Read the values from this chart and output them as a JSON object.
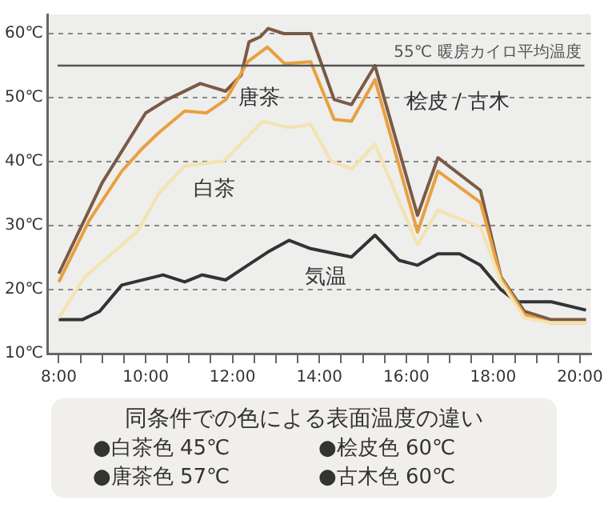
{
  "chart_data": {
    "type": "line",
    "xlim": [
      7.75,
      20.25
    ],
    "ylim": [
      10,
      63
    ],
    "xticks": [
      {
        "value": 8,
        "label": "8:00"
      },
      {
        "value": 8.5,
        "label": null
      },
      {
        "value": 9,
        "label": null
      },
      {
        "value": 9.5,
        "label": null
      },
      {
        "value": 10,
        "label": "10:00"
      },
      {
        "value": 10.5,
        "label": null
      },
      {
        "value": 11,
        "label": null
      },
      {
        "value": 11.5,
        "label": null
      },
      {
        "value": 12,
        "label": "12:00"
      },
      {
        "value": 12.5,
        "label": null
      },
      {
        "value": 13,
        "label": null
      },
      {
        "value": 13.5,
        "label": null
      },
      {
        "value": 14,
        "label": "14:00"
      },
      {
        "value": 14.5,
        "label": null
      },
      {
        "value": 15,
        "label": null
      },
      {
        "value": 15.5,
        "label": null
      },
      {
        "value": 16,
        "label": "16:00"
      },
      {
        "value": 16.5,
        "label": null
      },
      {
        "value": 17,
        "label": null
      },
      {
        "value": 17.5,
        "label": null
      },
      {
        "value": 18,
        "label": "18:00"
      },
      {
        "value": 18.5,
        "label": null
      },
      {
        "value": 19,
        "label": null
      },
      {
        "value": 19.5,
        "label": null
      },
      {
        "value": 20,
        "label": "20:00"
      }
    ],
    "yticks": [
      {
        "value": 10,
        "label": "10℃"
      },
      {
        "value": 20,
        "label": "20℃"
      },
      {
        "value": 30,
        "label": "30℃"
      },
      {
        "value": 40,
        "label": "40℃"
      },
      {
        "value": 50,
        "label": "50℃"
      },
      {
        "value": 60,
        "label": "60℃"
      }
    ],
    "grid": "y",
    "marker": "none",
    "line_style": "solid",
    "series": [
      {
        "name": "白茶",
        "color": "#f3e3b0",
        "x": [
          8,
          8.6,
          9.8,
          10.3,
          10.9,
          11.8,
          12.7,
          13.3,
          13.8,
          14.27,
          14.74,
          15.28,
          16.26,
          16.73,
          17.71,
          18.18,
          18.72,
          19.34,
          20.14
        ],
        "values": [
          15.6,
          22,
          29,
          35,
          39.3,
          40.1,
          46.3,
          45.3,
          45.8,
          40.1,
          38.8,
          42.7,
          27,
          32.4,
          29.8,
          21.2,
          15.6,
          14.8,
          14.8
        ]
      },
      {
        "name": "唐茶",
        "color": "#e8a040",
        "x": [
          8,
          8.7,
          9.45,
          9.9,
          10.3,
          10.9,
          11.4,
          11.85,
          12.35,
          12.8,
          13.2,
          13.8,
          14.34,
          14.74,
          15.28,
          16.26,
          16.73,
          17.71,
          18.18,
          18.72,
          19.34,
          20.14
        ],
        "values": [
          21.2,
          30.8,
          38.5,
          41.9,
          44.5,
          47.9,
          47.6,
          49.7,
          55.6,
          57.9,
          55.3,
          55.6,
          46.6,
          46.3,
          52.8,
          29,
          38.5,
          33.6,
          21.8,
          16.1,
          14.8,
          14.8
        ]
      },
      {
        "name": "桧皮 / 古木",
        "color": "#7a5a45",
        "x": [
          8,
          9,
          10,
          10.5,
          11.26,
          11.84,
          12.2,
          12.38,
          12.64,
          12.82,
          13.18,
          13.8,
          14.34,
          14.74,
          15.28,
          16.26,
          16.73,
          17.71,
          18.18,
          18.72,
          19.34,
          20.14
        ],
        "values": [
          22.5,
          36.7,
          47.6,
          49.7,
          52.2,
          51,
          53.5,
          58.7,
          59.5,
          60.8,
          60,
          60,
          49.7,
          48.9,
          55,
          31.6,
          40.6,
          35.5,
          22,
          16.6,
          15.3,
          15.3
        ]
      },
      {
        "name": "気温",
        "color": "#333333",
        "x": [
          8,
          8.54,
          8.94,
          9.45,
          10.4,
          10.9,
          11.3,
          11.84,
          12.35,
          12.82,
          13.3,
          13.8,
          14.74,
          15.28,
          15.83,
          16.26,
          16.73,
          17.23,
          17.71,
          18.18,
          18.54,
          19.34,
          20.14
        ],
        "values": [
          15.3,
          15.3,
          16.6,
          20.7,
          22.3,
          21.2,
          22.3,
          21.5,
          23.8,
          25.9,
          27.7,
          26.4,
          25.1,
          28.5,
          24.6,
          23.8,
          25.6,
          25.6,
          23.8,
          20,
          18.1,
          18.1,
          16.8
        ]
      }
    ],
    "ref_lines": [
      {
        "axis": "y",
        "value": 55,
        "label": "55℃ 暖房カイロ平均温度",
        "color": "#555555"
      }
    ],
    "annotations": [
      "同条件での色による表面温度の違い",
      "●白茶色 45℃",
      "●桧皮色 60℃",
      "●唐茶色 57℃",
      "●古木色 60℃"
    ]
  }
}
